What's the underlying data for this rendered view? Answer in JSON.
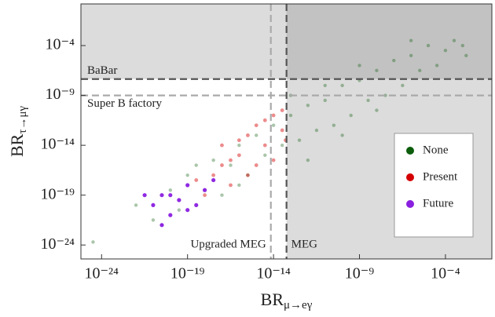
{
  "chart_data": {
    "type": "scatter",
    "x_label": {
      "main": "BR",
      "sub": "μ→eγ"
    },
    "y_label": {
      "main": "BR",
      "sub": "τ→μγ"
    },
    "log_x": true,
    "log_y": true,
    "xlim": [
      6.3e-26,
      0.05
    ],
    "ylim": [
      4e-26,
      1.5
    ],
    "xticks": [
      {
        "value": 1e-24,
        "label": "10⁻²⁴"
      },
      {
        "value": 1e-19,
        "label": "10⁻¹⁹"
      },
      {
        "value": 1e-14,
        "label": "10⁻¹⁴"
      },
      {
        "value": 1e-09,
        "label": "10⁻⁹"
      },
      {
        "value": 0.0001,
        "label": "10⁻⁴"
      }
    ],
    "yticks": [
      {
        "value": 1e-24,
        "label": "10⁻²⁴"
      },
      {
        "value": 1e-19,
        "label": "10⁻¹⁹"
      },
      {
        "value": 1e-14,
        "label": "10⁻¹⁴"
      },
      {
        "value": 1e-09,
        "label": "10⁻⁹"
      },
      {
        "value": 0.0001,
        "label": "10⁻⁴"
      }
    ],
    "limits": [
      {
        "label": "BaBar",
        "axis": "y",
        "value": 4.4e-08,
        "color": "#555555"
      },
      {
        "label": "Super B factory",
        "axis": "y",
        "value": 1e-09,
        "color": "#aaaaaa"
      },
      {
        "label": "MEG",
        "axis": "x",
        "value": 5.7e-14,
        "color": "#555555"
      },
      {
        "label": "Upgraded MEG",
        "axis": "x",
        "value": 7e-15,
        "color": "#aaaaaa"
      }
    ],
    "legend": "lower right",
    "series": [
      {
        "name": "None",
        "color": "#0b5d0b",
        "x": [
          3.2e-25,
          1e-22,
          1e-21,
          1e-20,
          3.2e-20,
          1e-19,
          1e-18,
          3.2e-18,
          1e-17,
          3.2e-17,
          1e-16,
          3.2e-16,
          1e-15,
          3.2e-15,
          1e-14,
          3.2e-14,
          1e-13,
          3.2e-13,
          1e-12,
          3.2e-12,
          1e-11,
          3.2e-11,
          1e-10,
          3.2e-10,
          1e-09,
          3.2e-09,
          1e-08,
          3.2e-08,
          1e-07,
          3.2e-07,
          1e-06,
          3.2e-06,
          1e-05,
          3.2e-05,
          0.0001,
          0.00032,
          0.001,
          0.0016,
          1e-12,
          1e-10,
          1e-08,
          3.2e-19,
          3.2e-21,
          1e-13,
          1e-06,
          1e-09,
          1e-11,
          1e-16
        ],
        "values": [
          2e-24,
          1e-20,
          3.2e-22,
          3.2e-19,
          3.2e-21,
          1e-17,
          3.2e-19,
          3.2e-16,
          1e-19,
          1e-16,
          1e-14,
          1e-17,
          1e-13,
          1e-15,
          1e-12,
          1e-14,
          1e-11,
          3.2e-14,
          1e-10,
          3.2e-13,
          3.2e-10,
          1e-12,
          1e-08,
          1e-11,
          3.2e-08,
          3.2e-10,
          3.2e-07,
          1e-09,
          3.2e-06,
          1e-08,
          1e-05,
          3.2e-07,
          0.0001,
          1e-06,
          3.2e-05,
          0.00032,
          0.0001,
          1e-05,
          3.2e-16,
          1e-13,
          3.2e-11,
          1e-16,
          1e-22,
          1e-09,
          0.00032,
          1e-06,
          1e-08,
          1e-18
        ]
      },
      {
        "name": "Present",
        "color": "#d40000",
        "x": [
          1e-18,
          3.2e-18,
          1e-17,
          3.2e-17,
          1e-16,
          3.2e-16,
          1e-15,
          1e-15,
          3.2e-15,
          1e-14,
          1e-14,
          3.2e-14,
          3.2e-14,
          1e-16,
          1e-17,
          3.2e-16,
          3.2e-15,
          5e-14,
          3.2e-17,
          3.2e-19
        ],
        "values": [
          1e-19,
          1e-17,
          1e-16,
          1e-18,
          1e-15,
          1e-13,
          1e-16,
          1e-12,
          1e-14,
          1e-11,
          3.2e-16,
          3.2e-13,
          3.2e-11,
          3.2e-14,
          1e-14,
          1e-17,
          3.2e-12,
          3.2e-14,
          3.2e-16,
          3.2e-18
        ]
      },
      {
        "name": "Future",
        "color": "#8a1fe0",
        "x": [
          1e-21,
          3.2e-21,
          1e-20,
          3.2e-20,
          1e-19,
          1e-19,
          3.2e-19,
          1e-18,
          3.2e-21,
          3.2e-18,
          3.2e-22,
          1e-20
        ],
        "values": [
          1e-20,
          1e-19,
          1e-21,
          3.2e-20,
          3.2e-21,
          1e-18,
          1e-20,
          3.2e-19,
          1e-22,
          3.2e-18,
          1e-19,
          1e-19
        ]
      }
    ]
  }
}
